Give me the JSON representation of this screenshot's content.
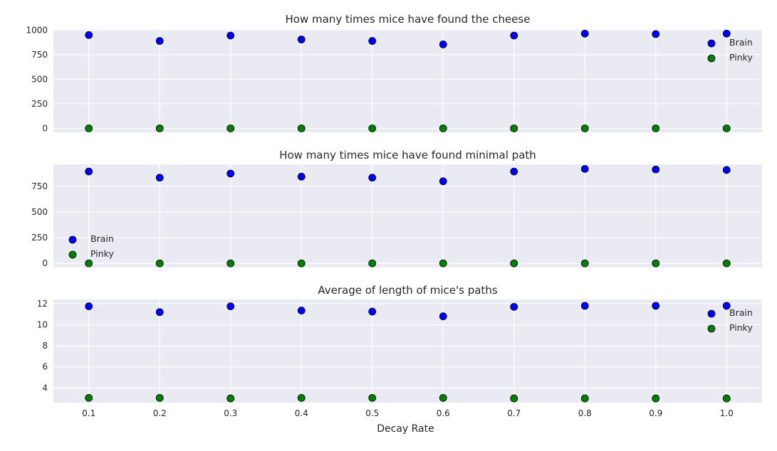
{
  "figure": {
    "xlabel": "Decay Rate",
    "x_tick_labels": [
      "0.1",
      "0.2",
      "0.3",
      "0.4",
      "0.5",
      "0.6",
      "0.7",
      "0.8",
      "0.9",
      "1.0"
    ],
    "colors": {
      "background": "#eaeaf2",
      "grid": "#ffffff",
      "brain": "#0000ff",
      "pinky": "#008000",
      "marker_edge": "#000000"
    }
  },
  "chart_data": [
    {
      "type": "scatter",
      "title": "How many times mice have found the cheese",
      "x": [
        0.1,
        0.2,
        0.3,
        0.4,
        0.5,
        0.6,
        0.7,
        0.8,
        0.9,
        1.0
      ],
      "xlim": [
        0.05,
        1.05
      ],
      "ylim": [
        -40,
        1010
      ],
      "y_ticks": [
        0,
        250,
        500,
        750,
        1000
      ],
      "y_tick_labels": [
        "0",
        "250",
        "500",
        "750",
        "1000"
      ],
      "legend_position": "right",
      "grid": true,
      "series": [
        {
          "name": "Brain",
          "color": "#0000ff",
          "values": [
            950,
            890,
            945,
            905,
            890,
            855,
            945,
            965,
            960,
            965
          ]
        },
        {
          "name": "Pinky",
          "color": "#008000",
          "values": [
            0,
            0,
            0,
            0,
            0,
            0,
            0,
            0,
            0,
            0
          ]
        }
      ]
    },
    {
      "type": "scatter",
      "title": "How many times mice have found minimal path",
      "x": [
        0.1,
        0.2,
        0.3,
        0.4,
        0.5,
        0.6,
        0.7,
        0.8,
        0.9,
        1.0
      ],
      "xlim": [
        0.05,
        1.05
      ],
      "ylim": [
        -40,
        965
      ],
      "y_ticks": [
        0,
        250,
        500,
        750
      ],
      "y_tick_labels": [
        "0",
        "250",
        "500",
        "750"
      ],
      "legend_position": "left",
      "grid": true,
      "series": [
        {
          "name": "Brain",
          "color": "#0000ff",
          "values": [
            895,
            835,
            875,
            845,
            835,
            800,
            895,
            920,
            915,
            910
          ]
        },
        {
          "name": "Pinky",
          "color": "#008000",
          "values": [
            0,
            0,
            0,
            0,
            0,
            0,
            0,
            0,
            0,
            0
          ]
        }
      ]
    },
    {
      "type": "scatter",
      "title": "Average of length of mice's paths",
      "x": [
        0.1,
        0.2,
        0.3,
        0.4,
        0.5,
        0.6,
        0.7,
        0.8,
        0.9,
        1.0
      ],
      "xlim": [
        0.05,
        1.05
      ],
      "ylim": [
        2.6,
        12.4
      ],
      "y_ticks": [
        4,
        6,
        8,
        10,
        12
      ],
      "y_tick_labels": [
        "4",
        "6",
        "8",
        "10",
        "12"
      ],
      "legend_position": "right",
      "grid": true,
      "series": [
        {
          "name": "Brain",
          "color": "#0000ff",
          "values": [
            11.75,
            11.2,
            11.75,
            11.35,
            11.25,
            10.8,
            11.7,
            11.8,
            11.8,
            11.8
          ]
        },
        {
          "name": "Pinky",
          "color": "#008000",
          "values": [
            3.05,
            3.05,
            3.0,
            3.05,
            3.05,
            3.05,
            3.0,
            3.0,
            3.0,
            3.0
          ]
        }
      ]
    }
  ]
}
